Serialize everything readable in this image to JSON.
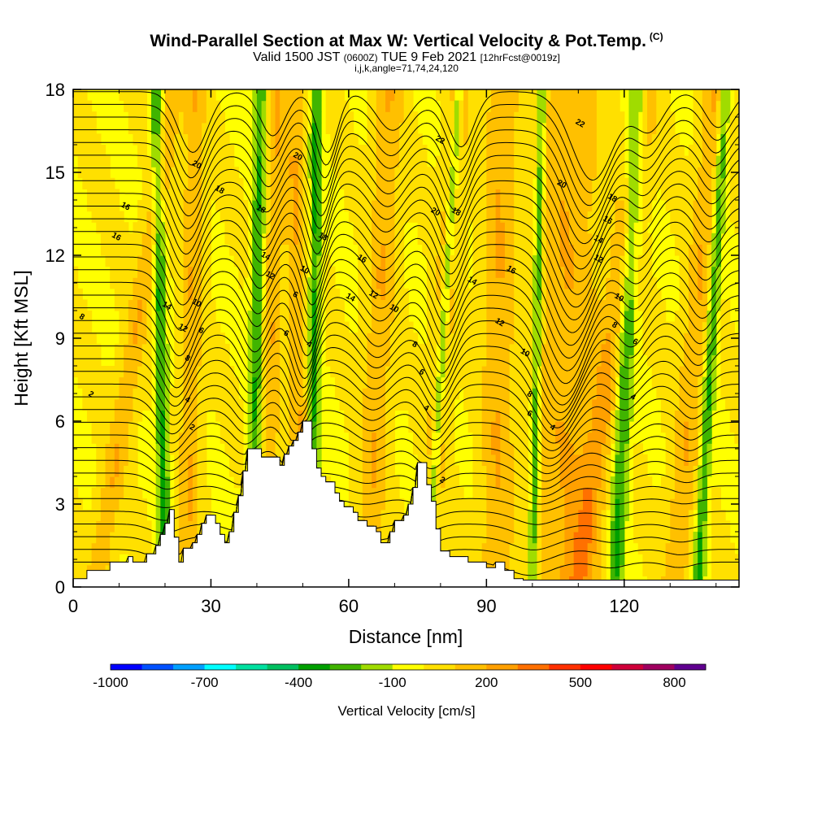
{
  "header": {
    "title_main": "Wind-Parallel Section at Max W: Vertical Velocity & Pot.Temp.",
    "title_mark": "(C)",
    "valid_prefix": "Valid 1500 JST",
    "valid_zulu": "(0600Z)",
    "valid_date": "TUE 9 Feb 2021",
    "valid_fcst": "[12hrFcst@0019z]",
    "params": "i,j,k,angle=71,74,24,120"
  },
  "colors": {
    "background": "#ffffff",
    "terrain": "#ffffff",
    "contour": "#000000",
    "base_fill": "#ffff00"
  },
  "chart_data": {
    "type": "contour-section",
    "xlabel": "Distance [nm]",
    "ylabel": "Height [Kft MSL]",
    "xlim": [
      0,
      145
    ],
    "ylim": [
      0,
      18
    ],
    "xticks": [
      0,
      30,
      60,
      90,
      120
    ],
    "yticks": [
      0,
      3,
      6,
      9,
      12,
      15,
      18
    ],
    "colorbar": {
      "title": "Vertical Velocity [cm/s]",
      "tick_labels": [
        "-1000",
        "-700",
        "-400",
        "-100",
        "200",
        "500",
        "800"
      ],
      "levels": [
        -1000,
        -900,
        -800,
        -700,
        -600,
        -500,
        -400,
        -300,
        -200,
        -100,
        0,
        100,
        200,
        300,
        400,
        500,
        600,
        700,
        800,
        900
      ],
      "colors": [
        "#0000ff",
        "#0050ff",
        "#00a0ff",
        "#00ffff",
        "#00e0a0",
        "#00c060",
        "#00a000",
        "#40b400",
        "#a0dc00",
        "#ffff00",
        "#ffe000",
        "#ffc000",
        "#ffa000",
        "#ff7000",
        "#ff3000",
        "#ff0000",
        "#d0003a",
        "#a00060",
        "#600090"
      ]
    },
    "terrain_kft": [
      [
        0,
        0.3
      ],
      [
        3,
        0.3
      ],
      [
        3,
        0.6
      ],
      [
        8,
        0.6
      ],
      [
        8,
        0.9
      ],
      [
        12,
        0.9
      ],
      [
        12,
        1.1
      ],
      [
        13,
        1.1
      ],
      [
        13,
        0.9
      ],
      [
        16,
        0.9
      ],
      [
        16,
        1.2
      ],
      [
        18,
        1.2
      ],
      [
        18,
        1.5
      ],
      [
        19,
        1.5
      ],
      [
        19,
        1.9
      ],
      [
        20,
        1.9
      ],
      [
        20,
        2.3
      ],
      [
        21,
        2.3
      ],
      [
        21,
        2.8
      ],
      [
        22,
        2.8
      ],
      [
        22,
        1.8
      ],
      [
        23,
        1.8
      ],
      [
        23,
        0.9
      ],
      [
        24,
        0.9
      ],
      [
        24,
        1.4
      ],
      [
        26,
        1.4
      ],
      [
        26,
        1.6
      ],
      [
        27,
        1.6
      ],
      [
        27,
        1.9
      ],
      [
        28,
        1.9
      ],
      [
        28,
        2.3
      ],
      [
        29,
        2.3
      ],
      [
        29,
        2.6
      ],
      [
        31,
        2.6
      ],
      [
        31,
        2.3
      ],
      [
        32,
        2.3
      ],
      [
        32,
        1.9
      ],
      [
        33,
        1.9
      ],
      [
        33,
        1.6
      ],
      [
        34,
        1.6
      ],
      [
        34,
        2.0
      ],
      [
        35,
        2.0
      ],
      [
        35,
        2.7
      ],
      [
        36,
        2.7
      ],
      [
        36,
        3.3
      ],
      [
        37,
        3.3
      ],
      [
        37,
        4.2
      ],
      [
        38,
        4.2
      ],
      [
        38,
        5.0
      ],
      [
        41,
        5.0
      ],
      [
        41,
        4.7
      ],
      [
        44,
        4.7
      ],
      [
        44,
        4.7
      ],
      [
        45,
        4.7
      ],
      [
        45,
        4.4
      ],
      [
        46,
        4.4
      ],
      [
        46,
        4.8
      ],
      [
        47,
        4.8
      ],
      [
        47,
        5.1
      ],
      [
        48,
        5.1
      ],
      [
        48,
        5.3
      ],
      [
        49,
        5.3
      ],
      [
        49,
        5.6
      ],
      [
        50,
        5.6
      ],
      [
        50,
        6.0
      ],
      [
        52,
        6.0
      ],
      [
        52,
        5.0
      ],
      [
        53,
        5.0
      ],
      [
        53,
        4.3
      ],
      [
        54,
        4.3
      ],
      [
        54,
        4.0
      ],
      [
        55,
        4.0
      ],
      [
        55,
        3.8
      ],
      [
        57,
        3.8
      ],
      [
        57,
        3.4
      ],
      [
        58,
        3.4
      ],
      [
        58,
        3.1
      ],
      [
        59,
        3.1
      ],
      [
        59,
        2.9
      ],
      [
        61,
        2.9
      ],
      [
        61,
        2.7
      ],
      [
        62,
        2.7
      ],
      [
        62,
        2.4
      ],
      [
        64,
        2.4
      ],
      [
        64,
        2.2
      ],
      [
        66,
        2.2
      ],
      [
        66,
        2.0
      ],
      [
        67,
        2.0
      ],
      [
        67,
        1.6
      ],
      [
        69,
        1.6
      ],
      [
        69,
        2.0
      ],
      [
        70,
        2.0
      ],
      [
        70,
        2.4
      ],
      [
        72,
        2.4
      ],
      [
        72,
        2.6
      ],
      [
        73,
        2.6
      ],
      [
        73,
        3.0
      ],
      [
        74,
        3.0
      ],
      [
        74,
        3.6
      ],
      [
        75,
        3.6
      ],
      [
        75,
        4.5
      ],
      [
        77,
        4.5
      ],
      [
        77,
        3.7
      ],
      [
        78,
        3.7
      ],
      [
        78,
        3.1
      ],
      [
        79,
        3.1
      ],
      [
        79,
        2.1
      ],
      [
        80,
        2.1
      ],
      [
        80,
        1.3
      ],
      [
        82,
        1.3
      ],
      [
        82,
        1.1
      ],
      [
        86,
        1.1
      ],
      [
        86,
        0.9
      ],
      [
        90,
        0.9
      ],
      [
        90,
        0.7
      ],
      [
        92,
        0.7
      ],
      [
        92,
        0.9
      ],
      [
        94,
        0.9
      ],
      [
        94,
        0.6
      ],
      [
        96,
        0.6
      ],
      [
        96,
        0.3
      ],
      [
        98,
        0.3
      ],
      [
        98,
        0.25
      ],
      [
        145,
        0.25
      ]
    ],
    "updraft_axes": [
      {
        "x0": 25,
        "x1": 26.5,
        "w": 2.3,
        "dir": 1
      },
      {
        "x0": 42,
        "x1": 44,
        "w": 2.5,
        "dir": 1
      },
      {
        "x0": 50,
        "x1": 48,
        "w": 2.2,
        "dir": 1
      },
      {
        "x0": 64,
        "x1": 69,
        "w": 3.0,
        "dir": 1
      },
      {
        "x0": 77,
        "x1": 84,
        "w": 2.4,
        "dir": 1
      },
      {
        "x0": 92,
        "x1": 93,
        "w": 3.5,
        "dir": 1
      },
      {
        "x0": 107,
        "x1": 107.5,
        "w": 7.5,
        "dir": 1
      },
      {
        "x0": 110,
        "x1": 125,
        "w": 3.0,
        "dir": 1
      },
      {
        "x0": 131,
        "x1": 140,
        "w": 3.0,
        "dir": 1
      },
      {
        "x0": 5,
        "x1": 22,
        "w": 2.5,
        "dir": 1
      },
      {
        "x0": 20,
        "x1": 18,
        "w": 1.3,
        "dir": -1
      },
      {
        "x0": 39,
        "x1": 41,
        "w": 1.5,
        "dir": -1
      },
      {
        "x0": 52,
        "x1": 53,
        "w": 1.3,
        "dir": -1
      },
      {
        "x0": 77,
        "x1": 84,
        "w": 1.0,
        "dir": -1
      },
      {
        "x0": 100,
        "x1": 102,
        "w": 1.0,
        "dir": -1
      },
      {
        "x0": 118,
        "x1": 123,
        "w": 1.7,
        "dir": -1
      },
      {
        "x0": 136,
        "x1": 142,
        "w": 1.2,
        "dir": -1
      }
    ],
    "contour_labels": [
      {
        "x": 4,
        "y": 7.0,
        "text": "2"
      },
      {
        "x": 2,
        "y": 9.8,
        "text": "8"
      },
      {
        "x": 9.5,
        "y": 12.7,
        "text": "16"
      },
      {
        "x": 11.5,
        "y": 13.8,
        "text": "16"
      },
      {
        "x": 20.5,
        "y": 10.2,
        "text": "14"
      },
      {
        "x": 24,
        "y": 9.4,
        "text": "12"
      },
      {
        "x": 27,
        "y": 10.3,
        "text": "10"
      },
      {
        "x": 28,
        "y": 9.3,
        "text": "6"
      },
      {
        "x": 25,
        "y": 8.3,
        "text": "8"
      },
      {
        "x": 25,
        "y": 6.8,
        "text": "4"
      },
      {
        "x": 26,
        "y": 5.8,
        "text": "2"
      },
      {
        "x": 27,
        "y": 15.3,
        "text": "20"
      },
      {
        "x": 32,
        "y": 14.4,
        "text": "18"
      },
      {
        "x": 41,
        "y": 13.7,
        "text": "18"
      },
      {
        "x": 42,
        "y": 12.0,
        "text": "14"
      },
      {
        "x": 43,
        "y": 11.3,
        "text": "12"
      },
      {
        "x": 49,
        "y": 15.6,
        "text": "20"
      },
      {
        "x": 48.5,
        "y": 10.6,
        "text": "6"
      },
      {
        "x": 46.5,
        "y": 9.2,
        "text": "6"
      },
      {
        "x": 50.5,
        "y": 11.5,
        "text": "10"
      },
      {
        "x": 51.5,
        "y": 8.8,
        "text": "4"
      },
      {
        "x": 54.5,
        "y": 12.7,
        "text": "18"
      },
      {
        "x": 63,
        "y": 11.9,
        "text": "16"
      },
      {
        "x": 60.5,
        "y": 10.5,
        "text": "14"
      },
      {
        "x": 65.5,
        "y": 10.6,
        "text": "12"
      },
      {
        "x": 70,
        "y": 10.1,
        "text": "10"
      },
      {
        "x": 74.5,
        "y": 8.8,
        "text": "8"
      },
      {
        "x": 76,
        "y": 7.8,
        "text": "6"
      },
      {
        "x": 77,
        "y": 6.5,
        "text": "4"
      },
      {
        "x": 80.5,
        "y": 3.9,
        "text": "2"
      },
      {
        "x": 80,
        "y": 16.2,
        "text": "22"
      },
      {
        "x": 79,
        "y": 13.6,
        "text": "20"
      },
      {
        "x": 83.5,
        "y": 13.6,
        "text": "18"
      },
      {
        "x": 87,
        "y": 11.1,
        "text": "14"
      },
      {
        "x": 95.5,
        "y": 11.5,
        "text": "16"
      },
      {
        "x": 93,
        "y": 9.6,
        "text": "12"
      },
      {
        "x": 98.5,
        "y": 8.5,
        "text": "10"
      },
      {
        "x": 99.5,
        "y": 7.0,
        "text": "8"
      },
      {
        "x": 99.5,
        "y": 6.3,
        "text": "6"
      },
      {
        "x": 104.5,
        "y": 5.8,
        "text": "4"
      },
      {
        "x": 110.5,
        "y": 16.8,
        "text": "22"
      },
      {
        "x": 106.5,
        "y": 14.6,
        "text": "20"
      },
      {
        "x": 117.5,
        "y": 14.1,
        "text": "18"
      },
      {
        "x": 116.5,
        "y": 13.3,
        "text": "16"
      },
      {
        "x": 114.5,
        "y": 12.6,
        "text": "14"
      },
      {
        "x": 114.5,
        "y": 11.9,
        "text": "12"
      },
      {
        "x": 119,
        "y": 10.5,
        "text": "10"
      },
      {
        "x": 118,
        "y": 9.5,
        "text": "8"
      },
      {
        "x": 122.5,
        "y": 8.9,
        "text": "6"
      },
      {
        "x": 122,
        "y": 6.9,
        "text": "4"
      }
    ]
  }
}
